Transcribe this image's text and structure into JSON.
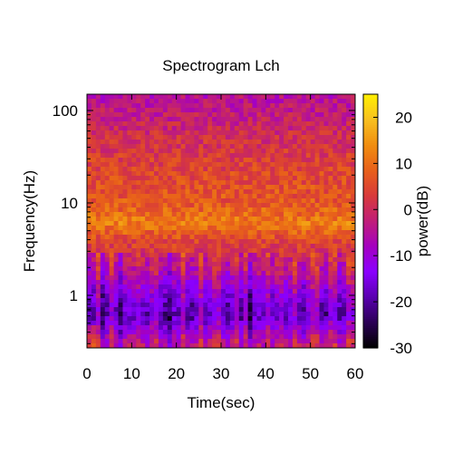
{
  "chart_data": {
    "type": "heatmap",
    "title": "Spectrogram Lch",
    "xlabel": "Time(sec)",
    "ylabel": "Frequency(Hz)",
    "colorbar_label": "power(dB)",
    "x_scale": "linear",
    "y_scale": "log",
    "xlim": [
      0,
      60
    ],
    "ylim": [
      0.27,
      150
    ],
    "x_ticks": [
      {
        "value": 0,
        "label": "0"
      },
      {
        "value": 10,
        "label": "10"
      },
      {
        "value": 20,
        "label": "20"
      },
      {
        "value": 30,
        "label": "30"
      },
      {
        "value": 40,
        "label": "40"
      },
      {
        "value": 50,
        "label": "50"
      },
      {
        "value": 60,
        "label": "60"
      }
    ],
    "y_ticks": [
      {
        "value": 1,
        "label": "1"
      },
      {
        "value": 10,
        "label": "10"
      },
      {
        "value": 100,
        "label": "100"
      }
    ],
    "colorbar_range": [
      -30,
      25
    ],
    "colorbar_ticks": [
      {
        "value": 20,
        "label": "20"
      },
      {
        "value": 10,
        "label": "10"
      },
      {
        "value": 0,
        "label": "0"
      },
      {
        "value": -10,
        "label": "-10"
      },
      {
        "value": -20,
        "label": "-20"
      },
      {
        "value": -30,
        "label": "-30"
      }
    ],
    "colormap": [
      "#000000",
      "#2a0055",
      "#5a00b0",
      "#8a00ff",
      "#a400c0",
      "#c01e78",
      "#d83a3a",
      "#e8601a",
      "#f08e10",
      "#f8c020",
      "#fff000"
    ],
    "approx_power_profile": [
      {
        "frequency": 0.3,
        "power": -2
      },
      {
        "frequency": 0.6,
        "power": -16
      },
      {
        "frequency": 1.0,
        "power": -12
      },
      {
        "frequency": 2.0,
        "power": -2
      },
      {
        "frequency": 4.0,
        "power": 5
      },
      {
        "frequency": 6.0,
        "power": 12
      },
      {
        "frequency": 10.0,
        "power": 7
      },
      {
        "frequency": 20.0,
        "power": 5
      },
      {
        "frequency": 50.0,
        "power": 1
      },
      {
        "frequency": 100.0,
        "power": -3
      },
      {
        "frequency": 150.0,
        "power": -5
      }
    ]
  }
}
